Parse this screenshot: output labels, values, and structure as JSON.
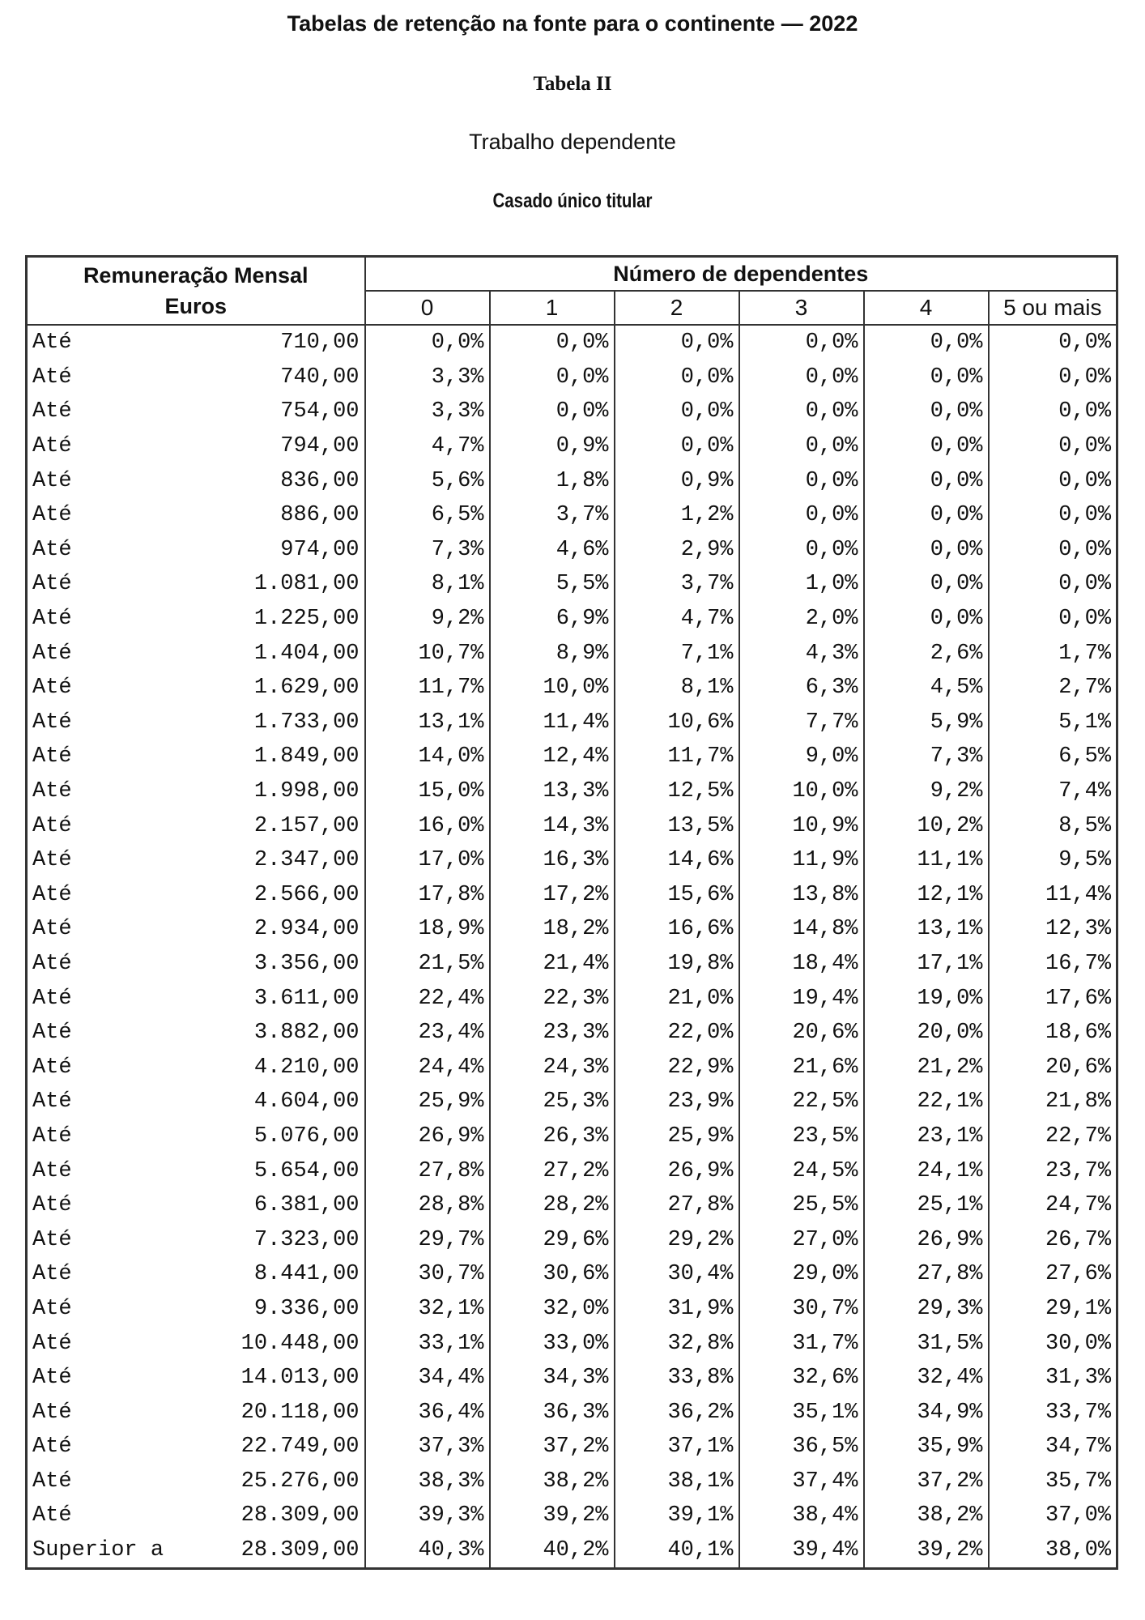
{
  "header": {
    "title": "Tabelas de retenção na fonte para o continente — 2022",
    "table_name": "Tabela II",
    "category": "Trabalho dependente",
    "subcategory": "Casado único titular"
  },
  "table": {
    "col_remun_line1": "Remuneração Mensal",
    "col_remun_line2": "Euros",
    "col_dependents": "Número de dependentes",
    "dependents": [
      "0",
      "1",
      "2",
      "3",
      "4",
      "5 ou mais"
    ],
    "rows": [
      {
        "label": "Até",
        "limit": "710,00",
        "rates": [
          "0,0%",
          "0,0%",
          "0,0%",
          "0,0%",
          "0,0%",
          "0,0%"
        ]
      },
      {
        "label": "Até",
        "limit": "740,00",
        "rates": [
          "3,3%",
          "0,0%",
          "0,0%",
          "0,0%",
          "0,0%",
          "0,0%"
        ]
      },
      {
        "label": "Até",
        "limit": "754,00",
        "rates": [
          "3,3%",
          "0,0%",
          "0,0%",
          "0,0%",
          "0,0%",
          "0,0%"
        ]
      },
      {
        "label": "Até",
        "limit": "794,00",
        "rates": [
          "4,7%",
          "0,9%",
          "0,0%",
          "0,0%",
          "0,0%",
          "0,0%"
        ]
      },
      {
        "label": "Até",
        "limit": "836,00",
        "rates": [
          "5,6%",
          "1,8%",
          "0,9%",
          "0,0%",
          "0,0%",
          "0,0%"
        ]
      },
      {
        "label": "Até",
        "limit": "886,00",
        "rates": [
          "6,5%",
          "3,7%",
          "1,2%",
          "0,0%",
          "0,0%",
          "0,0%"
        ]
      },
      {
        "label": "Até",
        "limit": "974,00",
        "rates": [
          "7,3%",
          "4,6%",
          "2,9%",
          "0,0%",
          "0,0%",
          "0,0%"
        ]
      },
      {
        "label": "Até",
        "limit": "1.081,00",
        "rates": [
          "8,1%",
          "5,5%",
          "3,7%",
          "1,0%",
          "0,0%",
          "0,0%"
        ]
      },
      {
        "label": "Até",
        "limit": "1.225,00",
        "rates": [
          "9,2%",
          "6,9%",
          "4,7%",
          "2,0%",
          "0,0%",
          "0,0%"
        ]
      },
      {
        "label": "Até",
        "limit": "1.404,00",
        "rates": [
          "10,7%",
          "8,9%",
          "7,1%",
          "4,3%",
          "2,6%",
          "1,7%"
        ]
      },
      {
        "label": "Até",
        "limit": "1.629,00",
        "rates": [
          "11,7%",
          "10,0%",
          "8,1%",
          "6,3%",
          "4,5%",
          "2,7%"
        ]
      },
      {
        "label": "Até",
        "limit": "1.733,00",
        "rates": [
          "13,1%",
          "11,4%",
          "10,6%",
          "7,7%",
          "5,9%",
          "5,1%"
        ]
      },
      {
        "label": "Até",
        "limit": "1.849,00",
        "rates": [
          "14,0%",
          "12,4%",
          "11,7%",
          "9,0%",
          "7,3%",
          "6,5%"
        ]
      },
      {
        "label": "Até",
        "limit": "1.998,00",
        "rates": [
          "15,0%",
          "13,3%",
          "12,5%",
          "10,0%",
          "9,2%",
          "7,4%"
        ]
      },
      {
        "label": "Até",
        "limit": "2.157,00",
        "rates": [
          "16,0%",
          "14,3%",
          "13,5%",
          "10,9%",
          "10,2%",
          "8,5%"
        ]
      },
      {
        "label": "Até",
        "limit": "2.347,00",
        "rates": [
          "17,0%",
          "16,3%",
          "14,6%",
          "11,9%",
          "11,1%",
          "9,5%"
        ]
      },
      {
        "label": "Até",
        "limit": "2.566,00",
        "rates": [
          "17,8%",
          "17,2%",
          "15,6%",
          "13,8%",
          "12,1%",
          "11,4%"
        ]
      },
      {
        "label": "Até",
        "limit": "2.934,00",
        "rates": [
          "18,9%",
          "18,2%",
          "16,6%",
          "14,8%",
          "13,1%",
          "12,3%"
        ]
      },
      {
        "label": "Até",
        "limit": "3.356,00",
        "rates": [
          "21,5%",
          "21,4%",
          "19,8%",
          "18,4%",
          "17,1%",
          "16,7%"
        ]
      },
      {
        "label": "Até",
        "limit": "3.611,00",
        "rates": [
          "22,4%",
          "22,3%",
          "21,0%",
          "19,4%",
          "19,0%",
          "17,6%"
        ]
      },
      {
        "label": "Até",
        "limit": "3.882,00",
        "rates": [
          "23,4%",
          "23,3%",
          "22,0%",
          "20,6%",
          "20,0%",
          "18,6%"
        ]
      },
      {
        "label": "Até",
        "limit": "4.210,00",
        "rates": [
          "24,4%",
          "24,3%",
          "22,9%",
          "21,6%",
          "21,2%",
          "20,6%"
        ]
      },
      {
        "label": "Até",
        "limit": "4.604,00",
        "rates": [
          "25,9%",
          "25,3%",
          "23,9%",
          "22,5%",
          "22,1%",
          "21,8%"
        ]
      },
      {
        "label": "Até",
        "limit": "5.076,00",
        "rates": [
          "26,9%",
          "26,3%",
          "25,9%",
          "23,5%",
          "23,1%",
          "22,7%"
        ]
      },
      {
        "label": "Até",
        "limit": "5.654,00",
        "rates": [
          "27,8%",
          "27,2%",
          "26,9%",
          "24,5%",
          "24,1%",
          "23,7%"
        ]
      },
      {
        "label": "Até",
        "limit": "6.381,00",
        "rates": [
          "28,8%",
          "28,2%",
          "27,8%",
          "25,5%",
          "25,1%",
          "24,7%"
        ]
      },
      {
        "label": "Até",
        "limit": "7.323,00",
        "rates": [
          "29,7%",
          "29,6%",
          "29,2%",
          "27,0%",
          "26,9%",
          "26,7%"
        ]
      },
      {
        "label": "Até",
        "limit": "8.441,00",
        "rates": [
          "30,7%",
          "30,6%",
          "30,4%",
          "29,0%",
          "27,8%",
          "27,6%"
        ]
      },
      {
        "label": "Até",
        "limit": "9.336,00",
        "rates": [
          "32,1%",
          "32,0%",
          "31,9%",
          "30,7%",
          "29,3%",
          "29,1%"
        ]
      },
      {
        "label": "Até",
        "limit": "10.448,00",
        "rates": [
          "33,1%",
          "33,0%",
          "32,8%",
          "31,7%",
          "31,5%",
          "30,0%"
        ]
      },
      {
        "label": "Até",
        "limit": "14.013,00",
        "rates": [
          "34,4%",
          "34,3%",
          "33,8%",
          "32,6%",
          "32,4%",
          "31,3%"
        ]
      },
      {
        "label": "Até",
        "limit": "20.118,00",
        "rates": [
          "36,4%",
          "36,3%",
          "36,2%",
          "35,1%",
          "34,9%",
          "33,7%"
        ]
      },
      {
        "label": "Até",
        "limit": "22.749,00",
        "rates": [
          "37,3%",
          "37,2%",
          "37,1%",
          "36,5%",
          "35,9%",
          "34,7%"
        ]
      },
      {
        "label": "Até",
        "limit": "25.276,00",
        "rates": [
          "38,3%",
          "38,2%",
          "38,1%",
          "37,4%",
          "37,2%",
          "35,7%"
        ]
      },
      {
        "label": "Até",
        "limit": "28.309,00",
        "rates": [
          "39,3%",
          "39,2%",
          "39,1%",
          "38,4%",
          "38,2%",
          "37,0%"
        ]
      },
      {
        "label": "Superior a",
        "limit": "28.309,00",
        "rates": [
          "40,3%",
          "40,2%",
          "40,1%",
          "39,4%",
          "39,2%",
          "38,0%"
        ]
      }
    ]
  }
}
